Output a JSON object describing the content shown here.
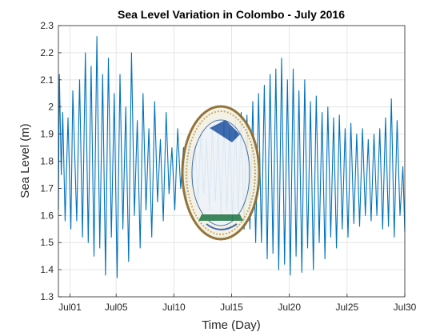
{
  "chart_data": {
    "type": "line",
    "title": "Sea Level Variation in Colombo - July 2016",
    "xlabel": "Time (Day)",
    "ylabel": "Sea Level (m)",
    "xlim": [
      "2016-06-30",
      "2016-07-30"
    ],
    "ylim": [
      1.3,
      2.3
    ],
    "x_ticks": [
      {
        "date": "2016-07-01",
        "label": "Jul01"
      },
      {
        "date": "2016-07-05",
        "label": "Jul05"
      },
      {
        "date": "2016-07-10",
        "label": "Jul10"
      },
      {
        "date": "2016-07-15",
        "label": "Jul15"
      },
      {
        "date": "2016-07-20",
        "label": "Jul20"
      },
      {
        "date": "2016-07-25",
        "label": "Jul25"
      },
      {
        "date": "2016-07-30",
        "label": "Jul30"
      }
    ],
    "y_ticks": [
      1.3,
      1.4,
      1.5,
      1.6,
      1.7,
      1.8,
      1.9,
      2.0,
      2.1,
      2.2,
      2.3
    ],
    "y_tick_labels": [
      "1.3",
      "1.4",
      "1.5",
      "1.6",
      "1.7",
      "1.8",
      "1.9",
      "2",
      "2.1",
      "2.2",
      "2.3"
    ],
    "grid": true,
    "series": [
      {
        "color": "#0072BD",
        "points": [
          [
            "2016-06-30T00:00",
            1.62
          ],
          [
            "2016-06-30T02:00",
            2.12
          ],
          [
            "2016-06-30T06:00",
            1.75
          ],
          [
            "2016-06-30T09:00",
            1.98
          ],
          [
            "2016-06-30T14:00",
            1.58
          ],
          [
            "2016-06-30T20:00",
            1.96
          ],
          [
            "2016-07-01T02:00",
            1.55
          ],
          [
            "2016-07-01T06:00",
            2.06
          ],
          [
            "2016-07-01T14:00",
            1.58
          ],
          [
            "2016-07-01T20:00",
            2.1
          ],
          [
            "2016-07-02T02:00",
            1.52
          ],
          [
            "2016-07-02T08:00",
            2.2
          ],
          [
            "2016-07-02T14:00",
            1.5
          ],
          [
            "2016-07-02T20:00",
            2.15
          ],
          [
            "2016-07-03T02:00",
            1.45
          ],
          [
            "2016-07-03T08:00",
            2.26
          ],
          [
            "2016-07-03T14:00",
            1.48
          ],
          [
            "2016-07-03T20:00",
            2.12
          ],
          [
            "2016-07-04T02:00",
            1.38
          ],
          [
            "2016-07-04T08:00",
            2.18
          ],
          [
            "2016-07-04T14:00",
            1.52
          ],
          [
            "2016-07-04T20:00",
            2.05
          ],
          [
            "2016-07-05T02:00",
            1.37
          ],
          [
            "2016-07-05T08:00",
            2.12
          ],
          [
            "2016-07-05T14:00",
            1.55
          ],
          [
            "2016-07-05T20:00",
            2.0
          ],
          [
            "2016-07-06T02:00",
            1.43
          ],
          [
            "2016-07-06T08:00",
            2.2
          ],
          [
            "2016-07-06T14:00",
            1.6
          ],
          [
            "2016-07-06T20:00",
            1.95
          ],
          [
            "2016-07-07T02:00",
            1.48
          ],
          [
            "2016-07-07T08:00",
            2.05
          ],
          [
            "2016-07-07T14:00",
            1.62
          ],
          [
            "2016-07-07T20:00",
            1.92
          ],
          [
            "2016-07-08T02:00",
            1.52
          ],
          [
            "2016-07-08T08:00",
            2.02
          ],
          [
            "2016-07-08T14:00",
            1.65
          ],
          [
            "2016-07-08T20:00",
            1.88
          ],
          [
            "2016-07-09T02:00",
            1.58
          ],
          [
            "2016-07-09T08:00",
            1.98
          ],
          [
            "2016-07-09T14:00",
            1.68
          ],
          [
            "2016-07-09T20:00",
            1.85
          ],
          [
            "2016-07-10T02:00",
            1.62
          ],
          [
            "2016-07-10T08:00",
            1.92
          ],
          [
            "2016-07-10T14:00",
            1.7
          ],
          [
            "2016-07-10T20:00",
            1.85
          ],
          [
            "2016-07-11T02:00",
            1.65
          ],
          [
            "2016-07-11T08:00",
            1.9
          ],
          [
            "2016-07-11T14:00",
            1.7
          ],
          [
            "2016-07-11T20:00",
            1.86
          ],
          [
            "2016-07-12T02:00",
            1.65
          ],
          [
            "2016-07-12T08:00",
            1.9
          ],
          [
            "2016-07-12T14:00",
            1.68
          ],
          [
            "2016-07-12T20:00",
            1.88
          ],
          [
            "2016-07-13T02:00",
            1.62
          ],
          [
            "2016-07-13T08:00",
            1.92
          ],
          [
            "2016-07-13T14:00",
            1.65
          ],
          [
            "2016-07-13T20:00",
            1.9
          ],
          [
            "2016-07-14T02:00",
            1.6
          ],
          [
            "2016-07-14T08:00",
            1.95
          ],
          [
            "2016-07-14T14:00",
            1.62
          ],
          [
            "2016-07-14T20:00",
            1.92
          ],
          [
            "2016-07-15T02:00",
            1.58
          ],
          [
            "2016-07-15T08:00",
            1.95
          ],
          [
            "2016-07-15T14:00",
            1.6
          ],
          [
            "2016-07-15T20:00",
            1.98
          ],
          [
            "2016-07-16T02:00",
            1.55
          ],
          [
            "2016-07-16T08:00",
            1.97
          ],
          [
            "2016-07-16T14:00",
            1.55
          ],
          [
            "2016-07-16T20:00",
            2.02
          ],
          [
            "2016-07-17T02:00",
            1.5
          ],
          [
            "2016-07-17T08:00",
            2.05
          ],
          [
            "2016-07-17T14:00",
            1.5
          ],
          [
            "2016-07-17T20:00",
            2.08
          ],
          [
            "2016-07-18T02:00",
            1.44
          ],
          [
            "2016-07-18T08:00",
            2.12
          ],
          [
            "2016-07-18T14:00",
            1.46
          ],
          [
            "2016-07-18T20:00",
            2.14
          ],
          [
            "2016-07-19T02:00",
            1.4
          ],
          [
            "2016-07-19T08:00",
            2.18
          ],
          [
            "2016-07-19T14:00",
            1.42
          ],
          [
            "2016-07-19T20:00",
            2.1
          ],
          [
            "2016-07-20T02:00",
            1.38
          ],
          [
            "2016-07-20T08:00",
            2.14
          ],
          [
            "2016-07-20T14:00",
            1.45
          ],
          [
            "2016-07-20T20:00",
            2.06
          ],
          [
            "2016-07-21T02:00",
            1.39
          ],
          [
            "2016-07-21T08:00",
            2.1
          ],
          [
            "2016-07-21T14:00",
            1.48
          ],
          [
            "2016-07-21T20:00",
            2.02
          ],
          [
            "2016-07-22T02:00",
            1.4
          ],
          [
            "2016-07-22T08:00",
            2.04
          ],
          [
            "2016-07-22T14:00",
            1.5
          ],
          [
            "2016-07-22T20:00",
            1.98
          ],
          [
            "2016-07-23T02:00",
            1.44
          ],
          [
            "2016-07-23T08:00",
            2.0
          ],
          [
            "2016-07-23T14:00",
            1.52
          ],
          [
            "2016-07-23T20:00",
            1.96
          ],
          [
            "2016-07-24T02:00",
            1.48
          ],
          [
            "2016-07-24T08:00",
            1.97
          ],
          [
            "2016-07-24T14:00",
            1.55
          ],
          [
            "2016-07-24T20:00",
            1.92
          ],
          [
            "2016-07-25T02:00",
            1.52
          ],
          [
            "2016-07-25T08:00",
            1.94
          ],
          [
            "2016-07-25T14:00",
            1.57
          ],
          [
            "2016-07-25T20:00",
            1.9
          ],
          [
            "2016-07-26T02:00",
            1.56
          ],
          [
            "2016-07-26T08:00",
            1.92
          ],
          [
            "2016-07-26T14:00",
            1.6
          ],
          [
            "2016-07-26T20:00",
            1.88
          ],
          [
            "2016-07-27T02:00",
            1.58
          ],
          [
            "2016-07-27T08:00",
            1.9
          ],
          [
            "2016-07-27T14:00",
            1.6
          ],
          [
            "2016-07-27T20:00",
            1.92
          ],
          [
            "2016-07-28T02:00",
            1.55
          ],
          [
            "2016-07-28T08:00",
            1.96
          ],
          [
            "2016-07-28T14:00",
            1.56
          ],
          [
            "2016-07-28T20:00",
            2.03
          ],
          [
            "2016-07-29T02:00",
            1.52
          ],
          [
            "2016-07-29T08:00",
            1.95
          ],
          [
            "2016-07-29T14:00",
            1.6
          ],
          [
            "2016-07-29T20:00",
            1.78
          ],
          [
            "2016-07-30T00:00",
            1.54
          ]
        ]
      }
    ]
  }
}
